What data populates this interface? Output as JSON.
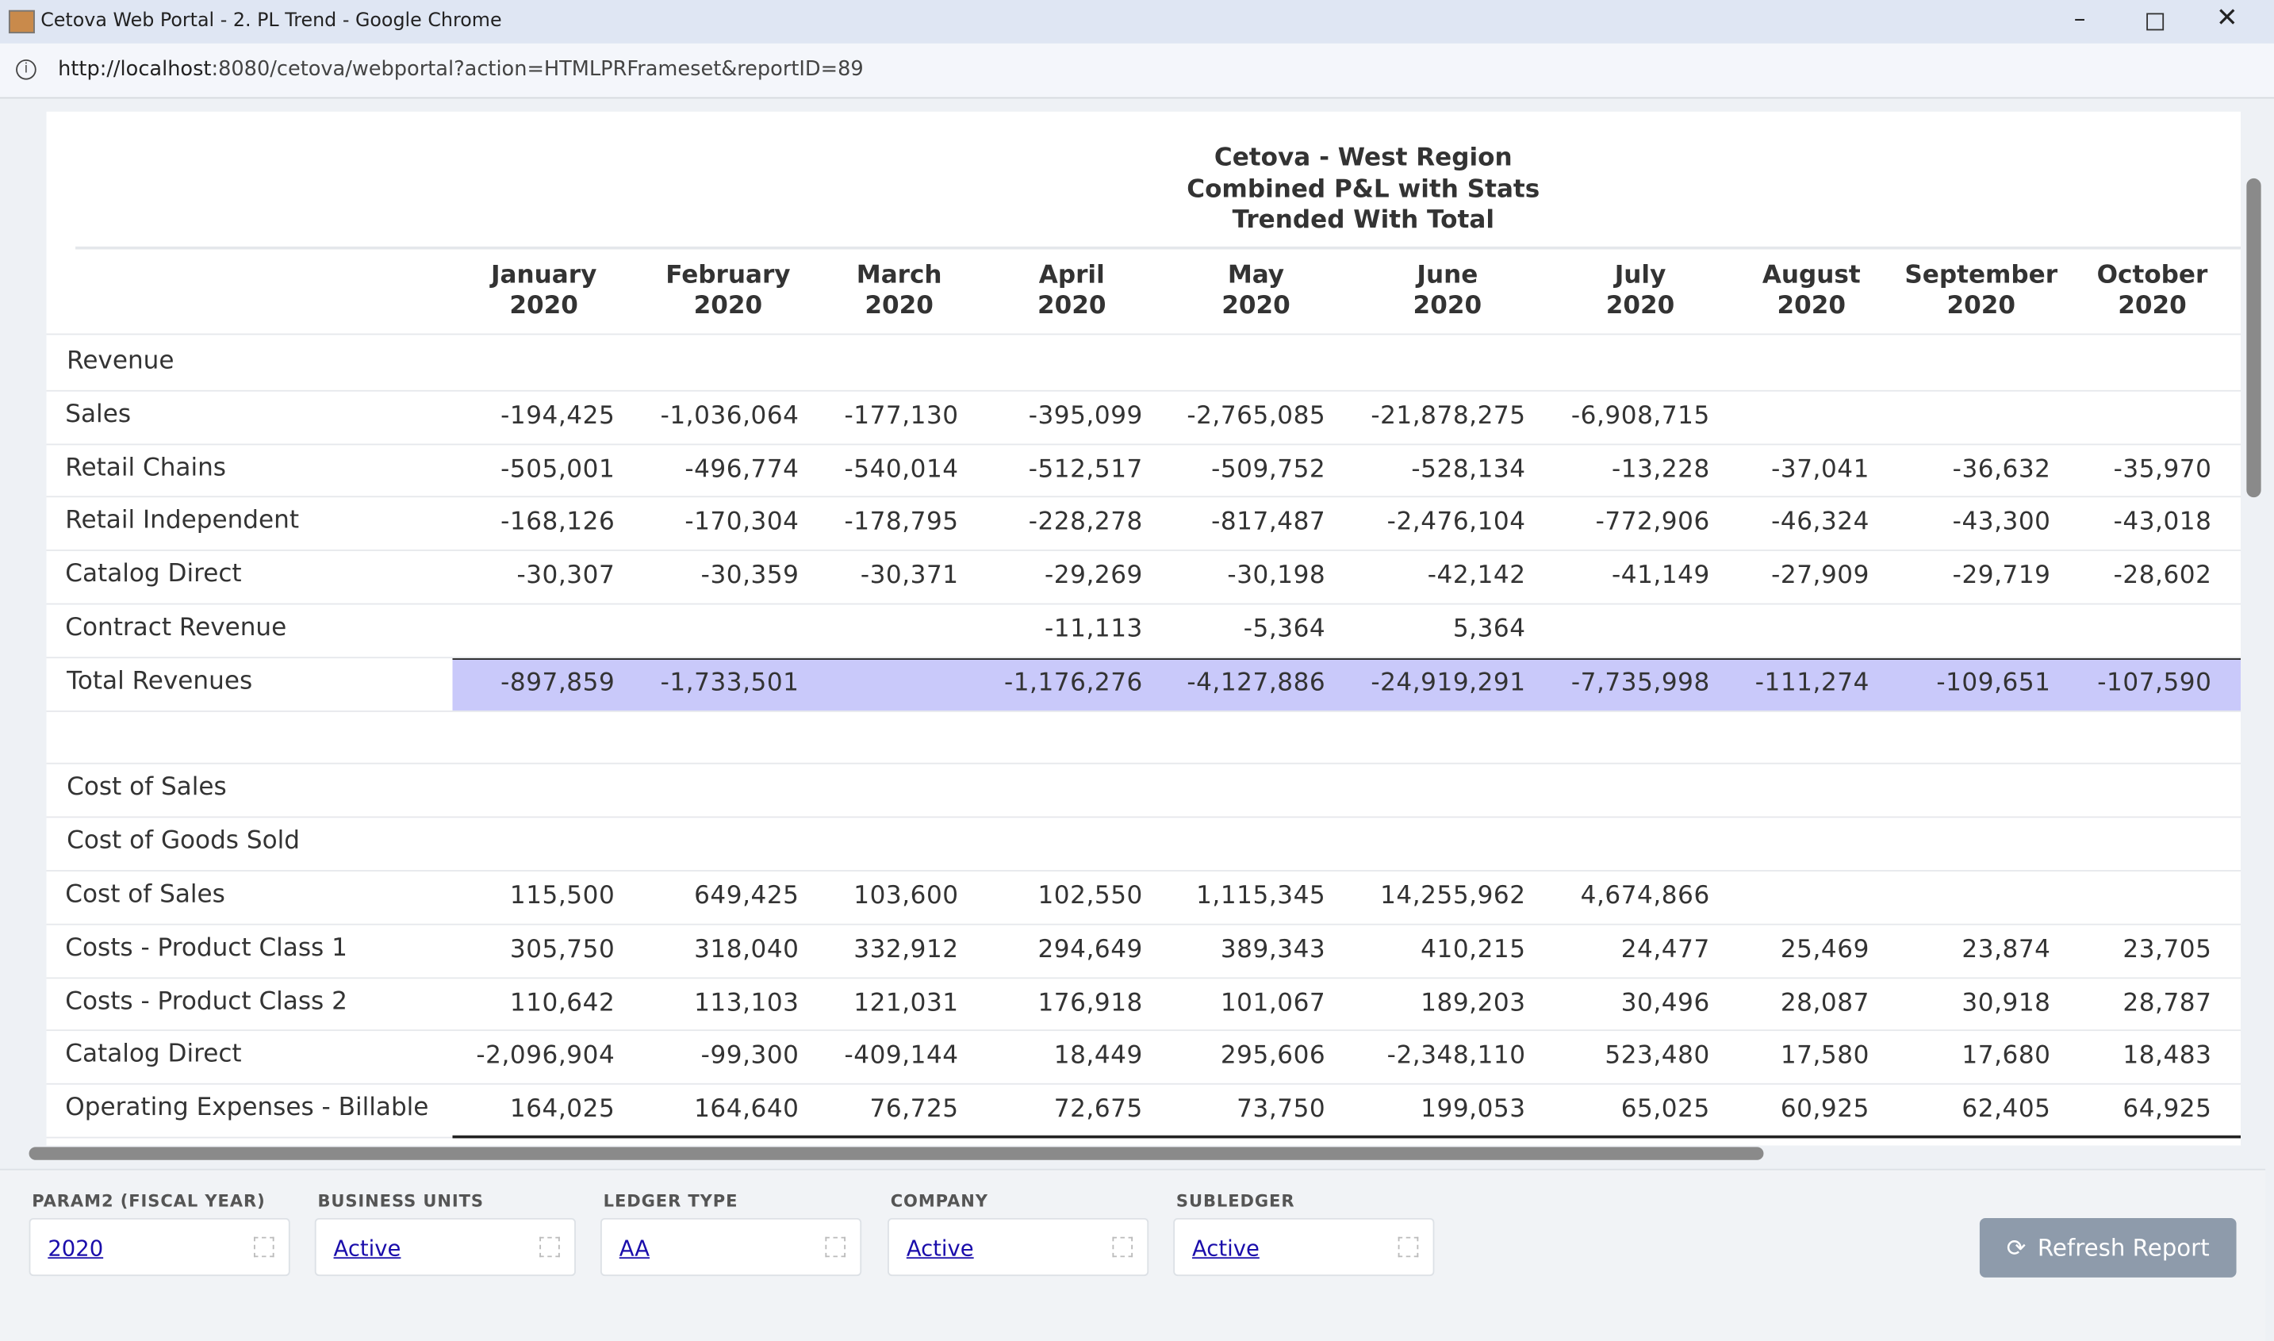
{
  "window": {
    "title": "Cetova Web Portal - 2. PL Trend - Google Chrome",
    "url_host": "http://localhost",
    "url_rest": ":8080/cetova/webportal?action=HTMLPRFrameset&reportID=89"
  },
  "report": {
    "title_lines": [
      "Cetova - West Region",
      "Combined P&L with Stats",
      "Trended With Total"
    ],
    "columns": [
      {
        "month": "January",
        "year": "2020"
      },
      {
        "month": "February",
        "year": "2020"
      },
      {
        "month": "March",
        "year": "2020"
      },
      {
        "month": "April",
        "year": "2020"
      },
      {
        "month": "May",
        "year": "2020"
      },
      {
        "month": "June",
        "year": "2020"
      },
      {
        "month": "July",
        "year": "2020"
      },
      {
        "month": "August",
        "year": "2020"
      },
      {
        "month": "September",
        "year": "2020"
      },
      {
        "month": "October",
        "year": "2020"
      }
    ],
    "rows": [
      {
        "label": "Revenue",
        "values": [
          null,
          null,
          null,
          null,
          null,
          null,
          null,
          null,
          null,
          null
        ]
      },
      {
        "label": "Sales",
        "values": [
          "-194,425",
          "-1,036,064",
          "-177,130",
          "-395,099",
          "-2,765,085",
          "-21,878,275",
          "-6,908,715",
          null,
          null,
          null
        ]
      },
      {
        "label": "Retail Chains",
        "values": [
          "-505,001",
          "-496,774",
          "-540,014",
          "-512,517",
          "-509,752",
          "-528,134",
          "-13,228",
          "-37,041",
          "-36,632",
          "-35,970"
        ]
      },
      {
        "label": "Retail Independent",
        "values": [
          "-168,126",
          "-170,304",
          "-178,795",
          "-228,278",
          "-817,487",
          "-2,476,104",
          "-772,906",
          "-46,324",
          "-43,300",
          "-43,018"
        ]
      },
      {
        "label": "Catalog Direct",
        "values": [
          "-30,307",
          "-30,359",
          "-30,371",
          "-29,269",
          "-30,198",
          "-42,142",
          "-41,149",
          "-27,909",
          "-29,719",
          "-28,602"
        ]
      },
      {
        "label": "Contract Revenue",
        "values": [
          null,
          null,
          null,
          "-11,113",
          "-5,364",
          "5,364",
          null,
          null,
          null,
          null
        ]
      },
      {
        "label": "Total Revenues",
        "values": [
          "-897,859",
          "-1,733,501",
          null,
          "-1,176,276",
          "-4,127,886",
          "-24,919,291",
          "-7,735,998",
          "-111,274",
          "-109,651",
          "-107,590"
        ]
      },
      {
        "label": null,
        "values": [
          null,
          null,
          null,
          null,
          null,
          null,
          null,
          null,
          null,
          null
        ]
      },
      {
        "label": "Cost of Sales",
        "values": [
          null,
          null,
          null,
          null,
          null,
          null,
          null,
          null,
          null,
          null
        ]
      },
      {
        "label": "Cost of Goods Sold",
        "values": [
          null,
          null,
          null,
          null,
          null,
          null,
          null,
          null,
          null,
          null
        ]
      },
      {
        "label": "Cost of Sales",
        "values": [
          "115,500",
          "649,425",
          "103,600",
          "102,550",
          "1,115,345",
          "14,255,962",
          "4,674,866",
          null,
          null,
          null
        ]
      },
      {
        "label": "Costs - Product Class 1",
        "values": [
          "305,750",
          "318,040",
          "332,912",
          "294,649",
          "389,343",
          "410,215",
          "24,477",
          "25,469",
          "23,874",
          "23,705"
        ]
      },
      {
        "label": "Costs - Product Class 2",
        "values": [
          "110,642",
          "113,103",
          "121,031",
          "176,918",
          "101,067",
          "189,203",
          "30,496",
          "28,087",
          "30,918",
          "28,787"
        ]
      },
      {
        "label": "Catalog Direct",
        "values": [
          "-2,096,904",
          "-99,300",
          "-409,144",
          "18,449",
          "295,606",
          "-2,348,110",
          "523,480",
          "17,580",
          "17,680",
          "18,483"
        ]
      },
      {
        "label": "Operating Expenses - Billable",
        "values": [
          "164,025",
          "164,640",
          "76,725",
          "72,675",
          "73,750",
          "199,053",
          "65,025",
          "60,925",
          "62,405",
          "64,925"
        ]
      }
    ]
  },
  "filters": [
    {
      "label": "PARAM2 (FISCAL YEAR)",
      "value": "2020"
    },
    {
      "label": "BUSINESS UNITS",
      "value": "Active"
    },
    {
      "label": "LEDGER TYPE",
      "value": "AA"
    },
    {
      "label": "COMPANY",
      "value": "Active"
    },
    {
      "label": "SUBLEDGER",
      "value": "Active"
    }
  ],
  "button": "Refresh Report"
}
